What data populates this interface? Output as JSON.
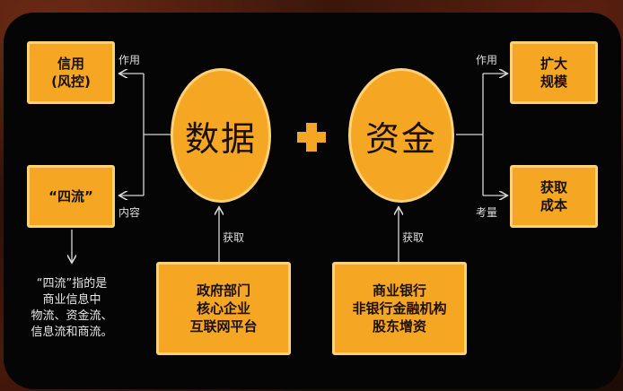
{
  "boxes": {
    "credit": [
      "信用",
      "(风控)"
    ],
    "four_flows": [
      "“四流”"
    ],
    "expand": [
      "扩大",
      "规模"
    ],
    "cost": [
      "获取",
      "成本"
    ],
    "gov": [
      "政府部门",
      "核心企业",
      "互联网平台"
    ],
    "bank": [
      "商业银行",
      "非银行金融机构",
      "股东增资"
    ]
  },
  "circles": {
    "data": "数据",
    "capital": "资金"
  },
  "labels": {
    "role_left": "作用",
    "content": "内容",
    "acquire_left": "获取",
    "role_right": "作用",
    "consider": "考量",
    "acquire_right": "获取"
  },
  "note": [
    "“四流”指的是",
    "商业信息中",
    "物流、资金流、",
    "信息流和商流。"
  ],
  "colors": {
    "box_fill": "#f5a623",
    "box_border": "#ffd27a",
    "panel": "#050505",
    "line": "#d8d8d8"
  }
}
